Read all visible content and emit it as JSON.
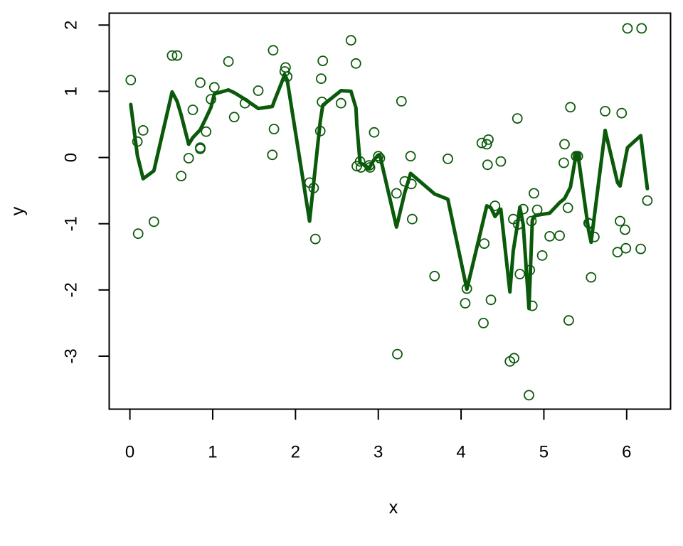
{
  "chart_data": {
    "type": "scatter",
    "title": "",
    "xlabel": "x",
    "ylabel": "y",
    "xlim": [
      -0.25,
      6.53
    ],
    "ylim": [
      -3.8,
      2.18
    ],
    "xticks": [
      0,
      1,
      2,
      3,
      4,
      5,
      6
    ],
    "yticks": [
      -3,
      -2,
      -1,
      0,
      1,
      2
    ],
    "ytick_labels": [
      "-3",
      "-2",
      "-1",
      "0",
      "1",
      "2"
    ],
    "grid": false,
    "legend": "none",
    "colors": {
      "series": "#0b5a0b",
      "axes": "#000000",
      "background": "#ffffff"
    },
    "series": [
      {
        "kind": "points",
        "marker": "open-circle",
        "points": [
          [
            0.01,
            1.17
          ],
          [
            0.09,
            0.24
          ],
          [
            0.1,
            -1.15
          ],
          [
            0.16,
            0.41
          ],
          [
            0.29,
            -0.97
          ],
          [
            0.51,
            1.54
          ],
          [
            0.57,
            1.54
          ],
          [
            0.62,
            -0.28
          ],
          [
            0.71,
            -0.01
          ],
          [
            0.76,
            0.72
          ],
          [
            0.85,
            1.13
          ],
          [
            0.85,
            0.15
          ],
          [
            0.85,
            0.13
          ],
          [
            0.92,
            0.39
          ],
          [
            0.98,
            0.88
          ],
          [
            1.02,
            1.06
          ],
          [
            1.19,
            1.45
          ],
          [
            1.26,
            0.61
          ],
          [
            1.39,
            0.82
          ],
          [
            1.55,
            1.01
          ],
          [
            1.72,
            0.04
          ],
          [
            1.73,
            1.62
          ],
          [
            1.74,
            0.43
          ],
          [
            1.87,
            1.3
          ],
          [
            1.88,
            1.36
          ],
          [
            1.9,
            1.22
          ],
          [
            2.17,
            -0.38
          ],
          [
            2.22,
            -0.46
          ],
          [
            2.24,
            -1.23
          ],
          [
            2.3,
            0.4
          ],
          [
            2.31,
            1.19
          ],
          [
            2.32,
            0.84
          ],
          [
            2.33,
            1.46
          ],
          [
            2.55,
            0.82
          ],
          [
            2.67,
            1.77
          ],
          [
            2.73,
            1.42
          ],
          [
            2.74,
            -0.13
          ],
          [
            2.78,
            -0.06
          ],
          [
            2.79,
            -0.15
          ],
          [
            2.89,
            -0.12
          ],
          [
            2.9,
            -0.15
          ],
          [
            2.95,
            0.38
          ],
          [
            3.0,
            0.02
          ],
          [
            3.02,
            -0.01
          ],
          [
            3.22,
            -0.54
          ],
          [
            3.23,
            -2.97
          ],
          [
            3.28,
            0.85
          ],
          [
            3.32,
            -0.36
          ],
          [
            3.39,
            0.02
          ],
          [
            3.4,
            -0.4
          ],
          [
            3.41,
            -0.93
          ],
          [
            3.68,
            -1.79
          ],
          [
            3.84,
            -0.02
          ],
          [
            4.05,
            -2.2
          ],
          [
            4.07,
            -1.98
          ],
          [
            4.25,
            0.22
          ],
          [
            4.27,
            -2.5
          ],
          [
            4.28,
            -1.3
          ],
          [
            4.31,
            0.2
          ],
          [
            4.32,
            -0.11
          ],
          [
            4.33,
            0.27
          ],
          [
            4.36,
            -2.15
          ],
          [
            4.41,
            -0.73
          ],
          [
            4.48,
            -0.06
          ],
          [
            4.59,
            -3.08
          ],
          [
            4.63,
            -0.93
          ],
          [
            4.64,
            -3.03
          ],
          [
            4.68,
            0.59
          ],
          [
            4.69,
            -1.01
          ],
          [
            4.71,
            -1.76
          ],
          [
            4.75,
            -0.78
          ],
          [
            4.82,
            -3.59
          ],
          [
            4.83,
            -1.7
          ],
          [
            4.85,
            -0.96
          ],
          [
            4.86,
            -2.24
          ],
          [
            4.88,
            -0.54
          ],
          [
            4.92,
            -0.79
          ],
          [
            4.98,
            -1.48
          ],
          [
            5.07,
            -1.19
          ],
          [
            5.19,
            -1.18
          ],
          [
            5.24,
            -0.08
          ],
          [
            5.25,
            0.2
          ],
          [
            5.29,
            -0.76
          ],
          [
            5.3,
            -2.46
          ],
          [
            5.32,
            0.76
          ],
          [
            5.39,
            0.02
          ],
          [
            5.41,
            0.02
          ],
          [
            5.54,
            -0.99
          ],
          [
            5.55,
            -1.0
          ],
          [
            5.57,
            -1.81
          ],
          [
            5.61,
            -1.2
          ],
          [
            5.74,
            0.7
          ],
          [
            5.89,
            -1.43
          ],
          [
            5.92,
            -0.96
          ],
          [
            5.94,
            0.67
          ],
          [
            5.98,
            -1.09
          ],
          [
            5.99,
            -1.37
          ],
          [
            6.01,
            1.95
          ],
          [
            6.17,
            -1.38
          ],
          [
            6.18,
            1.95
          ],
          [
            6.25,
            -0.65
          ]
        ]
      },
      {
        "kind": "line",
        "points": [
          [
            0.01,
            0.8
          ],
          [
            0.09,
            0.03
          ],
          [
            0.16,
            -0.32
          ],
          [
            0.29,
            -0.2
          ],
          [
            0.51,
            0.99
          ],
          [
            0.57,
            0.85
          ],
          [
            0.62,
            0.64
          ],
          [
            0.71,
            0.2
          ],
          [
            0.76,
            0.3
          ],
          [
            0.85,
            0.42
          ],
          [
            0.92,
            0.6
          ],
          [
            0.98,
            0.76
          ],
          [
            1.02,
            0.96
          ],
          [
            1.19,
            1.02
          ],
          [
            1.26,
            0.98
          ],
          [
            1.39,
            0.88
          ],
          [
            1.55,
            0.74
          ],
          [
            1.72,
            0.77
          ],
          [
            1.74,
            0.84
          ],
          [
            1.87,
            1.25
          ],
          [
            1.9,
            1.17
          ],
          [
            2.17,
            -0.96
          ],
          [
            2.3,
            0.55
          ],
          [
            2.33,
            0.79
          ],
          [
            2.55,
            1.01
          ],
          [
            2.67,
            1.0
          ],
          [
            2.73,
            0.75
          ],
          [
            2.74,
            0.5
          ],
          [
            2.78,
            -0.08
          ],
          [
            2.89,
            -0.16
          ],
          [
            2.95,
            -0.03
          ],
          [
            3.0,
            0.03
          ],
          [
            3.02,
            0.03
          ],
          [
            3.22,
            -1.05
          ],
          [
            3.32,
            -0.53
          ],
          [
            3.39,
            -0.24
          ],
          [
            3.68,
            -0.55
          ],
          [
            3.84,
            -0.63
          ],
          [
            4.07,
            -1.99
          ],
          [
            4.31,
            -0.73
          ],
          [
            4.36,
            -0.76
          ],
          [
            4.41,
            -0.89
          ],
          [
            4.48,
            -0.78
          ],
          [
            4.59,
            -2.03
          ],
          [
            4.63,
            -1.41
          ],
          [
            4.68,
            -1.02
          ],
          [
            4.71,
            -0.75
          ],
          [
            4.75,
            -1.01
          ],
          [
            4.82,
            -2.28
          ],
          [
            4.86,
            -0.95
          ],
          [
            4.88,
            -0.89
          ],
          [
            4.92,
            -0.87
          ],
          [
            5.07,
            -0.84
          ],
          [
            5.19,
            -0.68
          ],
          [
            5.25,
            -0.62
          ],
          [
            5.32,
            -0.45
          ],
          [
            5.39,
            0.05
          ],
          [
            5.41,
            0.06
          ],
          [
            5.54,
            -1.1
          ],
          [
            5.57,
            -1.28
          ],
          [
            5.74,
            0.41
          ],
          [
            5.89,
            -0.38
          ],
          [
            5.92,
            -0.43
          ],
          [
            6.01,
            0.15
          ],
          [
            6.17,
            0.33
          ],
          [
            6.25,
            -0.47
          ]
        ]
      }
    ]
  }
}
